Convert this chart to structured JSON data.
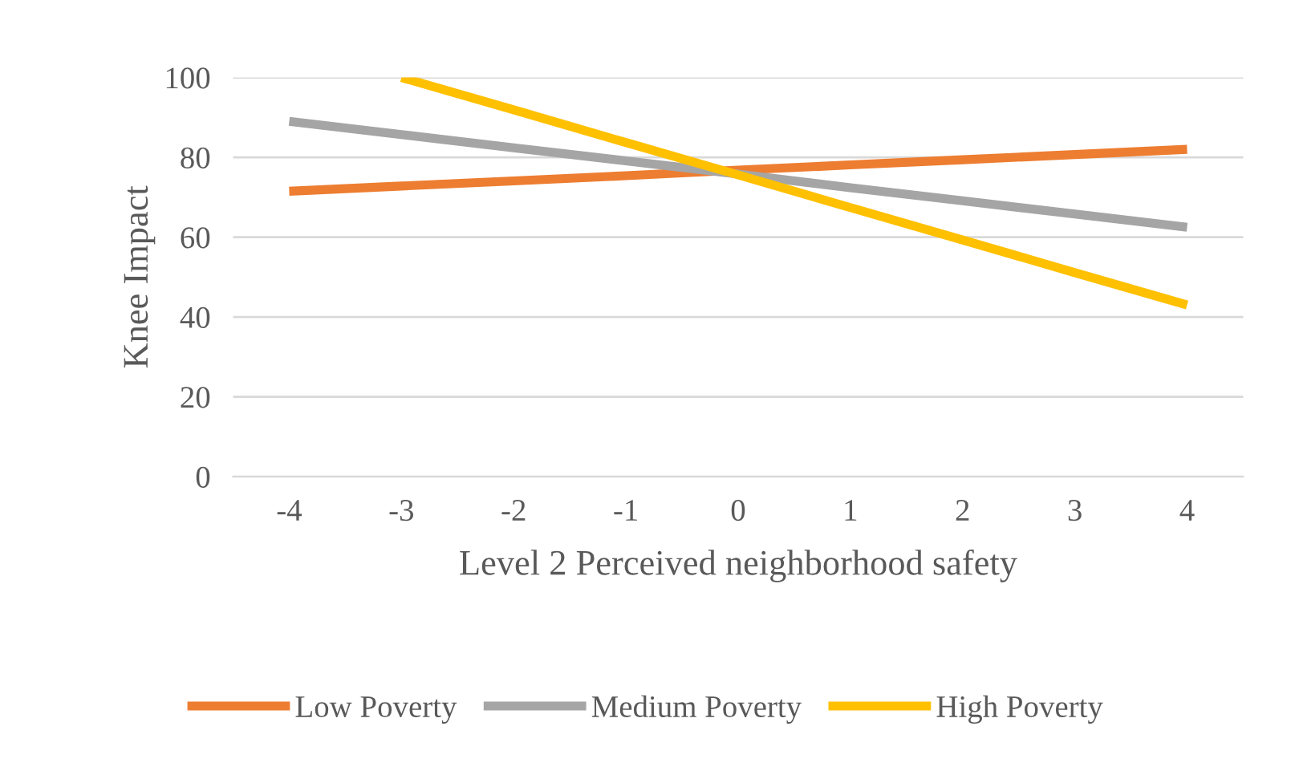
{
  "chart_data": {
    "type": "line",
    "xlabel": "Level 2 Perceived neighborhood safety",
    "ylabel": "Knee Impact",
    "categories": [
      "-4",
      "-3",
      "-2",
      "-1",
      "0",
      "1",
      "2",
      "3",
      "4"
    ],
    "series": [
      {
        "name": "Low Poverty",
        "color": "#ed7d31",
        "values": [
          71.5,
          72.8,
          74.1,
          75.4,
          76.8,
          78.1,
          79.4,
          80.7,
          82
        ]
      },
      {
        "name": "Medium Poverty",
        "color": "#a5a5a5",
        "values": [
          89,
          85.7,
          82.4,
          79.1,
          75.8,
          72.4,
          69.1,
          65.8,
          62.5
        ]
      },
      {
        "name": "High Poverty",
        "color": "#ffc000",
        "values": [
          null,
          100,
          91.9,
          83.7,
          75.6,
          67.4,
          59.3,
          51.1,
          43
        ]
      }
    ],
    "ylim": [
      0,
      100
    ],
    "yticks": [
      0,
      20,
      40,
      60,
      80,
      100
    ],
    "grid": "y",
    "legend": "bottom",
    "marker": "none",
    "line_style": "solid"
  }
}
